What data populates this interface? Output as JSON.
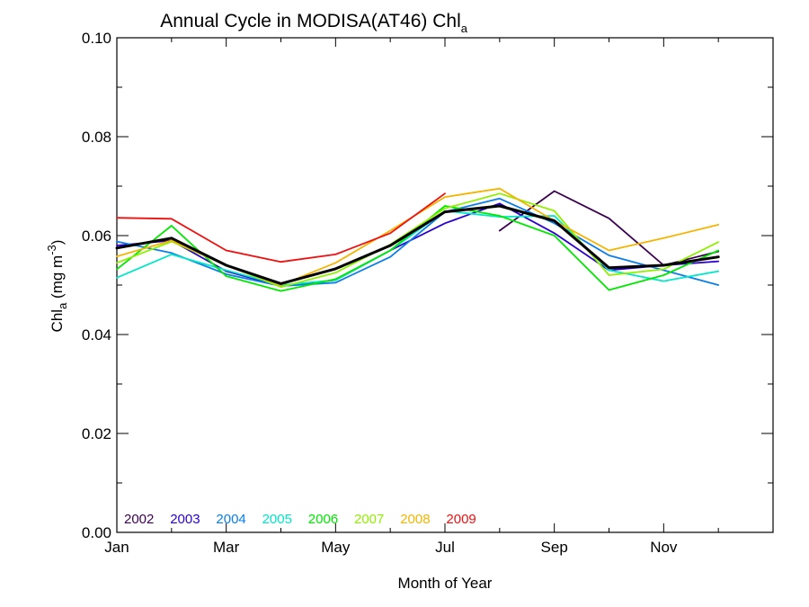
{
  "chart_data": {
    "type": "line",
    "title": "Annual Cycle in MODISA(AT46) Chl",
    "title_subscript": "a",
    "xlabel": "Month of Year",
    "ylabel": {
      "main": "Chl",
      "subscript": "a",
      "unit_open": " (mg m",
      "unit_power": "-3",
      "unit_close": ")"
    },
    "xlim": [
      0,
      12
    ],
    "ylim": [
      0.0,
      0.1
    ],
    "x_ticks": [
      0,
      2,
      4,
      6,
      8,
      10
    ],
    "x_tick_labels": [
      "Jan",
      "Mar",
      "May",
      "Jul",
      "Sep",
      "Nov"
    ],
    "y_ticks": [
      0.0,
      0.02,
      0.04,
      0.06,
      0.08,
      0.1
    ],
    "y_tick_labels": [
      "0.00",
      "0.02",
      "0.04",
      "0.06",
      "0.08",
      "0.10"
    ],
    "x": [
      0.0,
      1.0,
      2.0,
      3.0,
      4.0,
      5.0,
      6.0,
      7.0,
      8.0,
      9.0,
      10.0,
      11.0
    ],
    "legend_position": "bottom-left",
    "series": [
      {
        "name": "2002",
        "color": "#3c0050",
        "values": [
          null,
          null,
          null,
          null,
          null,
          null,
          null,
          0.061,
          0.069,
          0.0635,
          0.054,
          0.0568
        ]
      },
      {
        "name": "2003",
        "color": "#2a00d0",
        "values": [
          0.058,
          0.059,
          0.0528,
          0.0498,
          0.051,
          0.057,
          0.0625,
          0.0665,
          0.0605,
          0.053,
          0.054,
          0.0548
        ]
      },
      {
        "name": "2004",
        "color": "#0a7ee8",
        "values": [
          0.0588,
          0.0565,
          0.0522,
          0.0498,
          0.0505,
          0.0557,
          0.0648,
          0.0675,
          0.0625,
          0.056,
          0.053,
          0.05
        ]
      },
      {
        "name": "2005",
        "color": "#00e8c8",
        "values": [
          0.0515,
          0.0562,
          0.053,
          0.05,
          0.051,
          0.057,
          0.065,
          0.0638,
          0.064,
          0.053,
          0.0508,
          0.0528
        ]
      },
      {
        "name": "2006",
        "color": "#00e800",
        "values": [
          0.0532,
          0.062,
          0.0518,
          0.0488,
          0.0512,
          0.057,
          0.066,
          0.064,
          0.06,
          0.049,
          0.052,
          0.057
        ]
      },
      {
        "name": "2007",
        "color": "#90f000",
        "values": [
          0.0545,
          0.0588,
          0.054,
          0.0496,
          0.0525,
          0.0582,
          0.0655,
          0.0685,
          0.065,
          0.052,
          0.0532,
          0.0587
        ]
      },
      {
        "name": "2008",
        "color": "#f5b400",
        "values": [
          0.0558,
          0.059,
          0.054,
          0.05,
          0.0545,
          0.061,
          0.0678,
          0.0695,
          0.063,
          0.057,
          0.0595,
          0.0622
        ]
      },
      {
        "name": "2009",
        "color": "#f01010",
        "values": [
          0.0636,
          0.0634,
          0.057,
          0.0547,
          0.0562,
          0.0605,
          0.0685,
          null,
          null,
          null,
          null,
          null
        ]
      },
      {
        "name": "",
        "color": "#000000",
        "thick": true,
        "values": [
          0.0575,
          0.0595,
          0.054,
          0.0503,
          0.0533,
          0.058,
          0.0648,
          0.066,
          0.063,
          0.0535,
          0.054,
          0.0557
        ]
      }
    ]
  }
}
